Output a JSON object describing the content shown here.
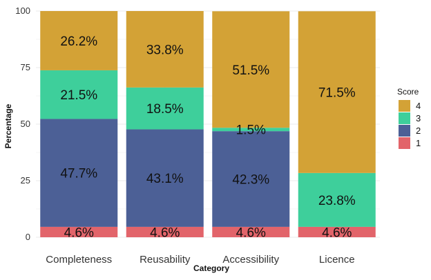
{
  "chart_data": {
    "type": "bar",
    "stacked": true,
    "xlabel": "Category",
    "ylabel": "Percentage",
    "ylim": [
      0,
      100
    ],
    "yticks": [
      0,
      25,
      50,
      75,
      100
    ],
    "grid": true,
    "legend_placement": "right",
    "categories": [
      "Completeness",
      "Reusability",
      "Accessibility",
      "Licence"
    ],
    "legend": {
      "title": "Score",
      "order": [
        "4",
        "3",
        "2",
        "1"
      ]
    },
    "series": [
      {
        "name": "1",
        "color": "#e2646a",
        "values": [
          4.6,
          4.6,
          4.6,
          4.6
        ],
        "labels": [
          "4.6%",
          "4.6%",
          "4.6%",
          "4.6%"
        ]
      },
      {
        "name": "2",
        "color": "#4c6096",
        "values": [
          47.7,
          43.1,
          42.3,
          0
        ],
        "labels": [
          "47.7%",
          "43.1%",
          "42.3%",
          ""
        ]
      },
      {
        "name": "3",
        "color": "#3ecf9b",
        "values": [
          21.5,
          18.5,
          1.5,
          23.8
        ],
        "labels": [
          "21.5%",
          "18.5%",
          "1.5%",
          "23.8%"
        ]
      },
      {
        "name": "4",
        "color": "#d3a236",
        "values": [
          26.2,
          33.8,
          51.5,
          71.5
        ],
        "labels": [
          "26.2%",
          "33.8%",
          "51.5%",
          "71.5%"
        ]
      }
    ]
  }
}
